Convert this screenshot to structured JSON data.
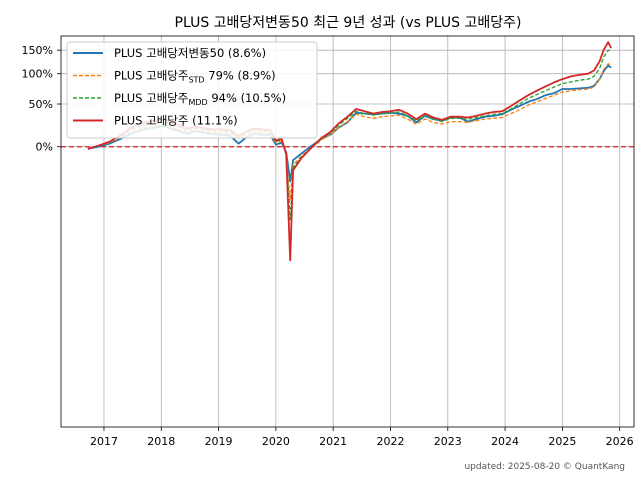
{
  "chart_data": {
    "type": "line",
    "title": "PLUS 고배당저변동50 최근 9년 성과 (vs PLUS 고배당주)",
    "xlabel": "",
    "ylabel": "",
    "ylim": [
      -0.93,
      1.86
    ],
    "y_scale": "log1p",
    "y_ticks": [
      {
        "value": 0.0,
        "label": "0%"
      },
      {
        "value": 0.5,
        "label": "50%"
      },
      {
        "value": 1.0,
        "label": "100%"
      },
      {
        "value": 1.5,
        "label": "150%"
      }
    ],
    "xlim": [
      2016.25,
      2026.25
    ],
    "x_ticks": [
      2017,
      2018,
      2019,
      2020,
      2021,
      2022,
      2023,
      2024,
      2025,
      2026
    ],
    "grid": true,
    "legend_position": "top-left",
    "reference_line": {
      "value": 0.0,
      "color": "#e41a1c",
      "style": "dashed"
    },
    "footer": "updated: 2025-08-20 © QuantKang",
    "series": [
      {
        "name": "PLUS 고배당저변동50 (8.6%)",
        "name_main": "PLUS 고배당저변동50 (8.6%)",
        "name_sub": "",
        "name_tail": "",
        "color": "#1f77b4",
        "style": "solid",
        "x": [
          2016.72,
          2016.9,
          2017.1,
          2017.3,
          2017.5,
          2017.7,
          2017.9,
          2018.05,
          2018.2,
          2018.3,
          2018.45,
          2018.6,
          2018.75,
          2018.9,
          2019.05,
          2019.2,
          2019.35,
          2019.5,
          2019.62,
          2019.75,
          2019.9,
          2020.0,
          2020.1,
          2020.18,
          2020.25,
          2020.3,
          2020.45,
          2020.6,
          2020.8,
          2020.95,
          2021.1,
          2021.25,
          2021.4,
          2021.55,
          2021.7,
          2021.85,
          2022.0,
          2022.15,
          2022.3,
          2022.45,
          2022.6,
          2022.75,
          2022.9,
          2023.05,
          2023.2,
          2023.35,
          2023.5,
          2023.65,
          2023.8,
          2023.95,
          2024.1,
          2024.25,
          2024.4,
          2024.55,
          2024.7,
          2024.85,
          2025.0,
          2025.15,
          2025.3,
          2025.45,
          2025.55,
          2025.65,
          2025.72,
          2025.8,
          2025.85
        ],
        "y": [
          -0.02,
          0.0,
          0.03,
          0.08,
          0.14,
          0.18,
          0.2,
          0.22,
          0.18,
          0.16,
          0.13,
          0.16,
          0.14,
          0.13,
          0.12,
          0.11,
          0.03,
          0.1,
          0.13,
          0.12,
          0.12,
          0.02,
          0.04,
          -0.05,
          -0.28,
          -0.12,
          -0.06,
          0.0,
          0.08,
          0.12,
          0.2,
          0.26,
          0.38,
          0.37,
          0.36,
          0.37,
          0.38,
          0.37,
          0.34,
          0.26,
          0.34,
          0.3,
          0.28,
          0.32,
          0.32,
          0.27,
          0.3,
          0.33,
          0.34,
          0.36,
          0.42,
          0.47,
          0.53,
          0.57,
          0.63,
          0.66,
          0.73,
          0.73,
          0.74,
          0.75,
          0.78,
          0.9,
          1.05,
          1.16,
          1.12
        ]
      },
      {
        "name": "PLUS 고배당주STD 79% (8.9%)",
        "name_main": "PLUS 고배당주",
        "name_sub": "STD",
        "name_tail": " 79% (8.9%)",
        "color": "#ff7f0e",
        "style": "dashed",
        "x": [
          2016.72,
          2016.9,
          2017.1,
          2017.3,
          2017.5,
          2017.7,
          2017.9,
          2018.05,
          2018.2,
          2018.3,
          2018.45,
          2018.6,
          2018.75,
          2018.9,
          2019.05,
          2019.2,
          2019.35,
          2019.5,
          2019.62,
          2019.75,
          2019.9,
          2020.0,
          2020.1,
          2020.18,
          2020.25,
          2020.3,
          2020.45,
          2020.6,
          2020.8,
          2020.95,
          2021.1,
          2021.25,
          2021.4,
          2021.55,
          2021.7,
          2021.85,
          2022.0,
          2022.15,
          2022.3,
          2022.45,
          2022.6,
          2022.75,
          2022.9,
          2023.05,
          2023.2,
          2023.35,
          2023.5,
          2023.65,
          2023.8,
          2023.95,
          2024.1,
          2024.25,
          2024.4,
          2024.55,
          2024.7,
          2024.85,
          2025.0,
          2025.15,
          2025.3,
          2025.45,
          2025.55,
          2025.65,
          2025.72,
          2025.8,
          2025.85
        ],
        "y": [
          -0.02,
          0.01,
          0.04,
          0.1,
          0.17,
          0.2,
          0.22,
          0.24,
          0.2,
          0.18,
          0.15,
          0.17,
          0.15,
          0.14,
          0.14,
          0.13,
          0.09,
          0.13,
          0.15,
          0.14,
          0.13,
          0.04,
          0.06,
          -0.06,
          -0.4,
          -0.16,
          -0.08,
          -0.02,
          0.07,
          0.12,
          0.2,
          0.27,
          0.36,
          0.33,
          0.31,
          0.33,
          0.34,
          0.35,
          0.3,
          0.24,
          0.3,
          0.26,
          0.24,
          0.27,
          0.27,
          0.26,
          0.28,
          0.3,
          0.31,
          0.32,
          0.37,
          0.42,
          0.48,
          0.53,
          0.58,
          0.63,
          0.68,
          0.7,
          0.72,
          0.73,
          0.76,
          0.9,
          1.08,
          1.2,
          1.16
        ]
      },
      {
        "name": "PLUS 고배당주MDD 94% (10.5%)",
        "name_main": "PLUS 고배당주",
        "name_sub": "MDD",
        "name_tail": " 94% (10.5%)",
        "color": "#2ca02c",
        "style": "dashed",
        "x": [
          2016.72,
          2016.9,
          2017.1,
          2017.3,
          2017.5,
          2017.7,
          2017.9,
          2018.05,
          2018.2,
          2018.3,
          2018.45,
          2018.6,
          2018.75,
          2018.9,
          2019.05,
          2019.2,
          2019.35,
          2019.5,
          2019.62,
          2019.75,
          2019.9,
          2020.0,
          2020.1,
          2020.18,
          2020.25,
          2020.3,
          2020.45,
          2020.6,
          2020.8,
          2020.95,
          2021.1,
          2021.25,
          2021.4,
          2021.55,
          2021.7,
          2021.85,
          2022.0,
          2022.15,
          2022.3,
          2022.45,
          2022.6,
          2022.75,
          2022.9,
          2023.05,
          2023.2,
          2023.35,
          2023.5,
          2023.65,
          2023.8,
          2023.95,
          2024.1,
          2024.25,
          2024.4,
          2024.55,
          2024.7,
          2024.85,
          2025.0,
          2025.15,
          2025.3,
          2025.45,
          2025.55,
          2025.65,
          2025.72,
          2025.8,
          2025.85
        ],
        "y": [
          -0.02,
          0.01,
          0.05,
          0.11,
          0.19,
          0.23,
          0.25,
          0.27,
          0.23,
          0.21,
          0.17,
          0.19,
          0.17,
          0.16,
          0.16,
          0.15,
          0.1,
          0.15,
          0.17,
          0.16,
          0.15,
          0.05,
          0.07,
          -0.06,
          -0.5,
          -0.18,
          -0.09,
          -0.02,
          0.08,
          0.14,
          0.23,
          0.31,
          0.4,
          0.37,
          0.35,
          0.37,
          0.38,
          0.39,
          0.34,
          0.28,
          0.34,
          0.3,
          0.27,
          0.31,
          0.31,
          0.3,
          0.32,
          0.34,
          0.36,
          0.37,
          0.43,
          0.5,
          0.58,
          0.64,
          0.7,
          0.76,
          0.82,
          0.85,
          0.88,
          0.9,
          0.95,
          1.1,
          1.34,
          1.5,
          1.48
        ]
      },
      {
        "name": "PLUS 고배당주 (11.1%)",
        "name_main": "PLUS 고배당주 (11.1%)",
        "name_sub": "",
        "name_tail": "",
        "color": "#d62728",
        "style": "solid",
        "x": [
          2016.72,
          2016.9,
          2017.1,
          2017.3,
          2017.5,
          2017.7,
          2017.9,
          2018.05,
          2018.2,
          2018.3,
          2018.45,
          2018.6,
          2018.75,
          2018.9,
          2019.05,
          2019.2,
          2019.35,
          2019.5,
          2019.62,
          2019.75,
          2019.9,
          2020.0,
          2020.1,
          2020.18,
          2020.25,
          2020.3,
          2020.45,
          2020.6,
          2020.8,
          2020.95,
          2021.1,
          2021.25,
          2021.4,
          2021.55,
          2021.7,
          2021.85,
          2022.0,
          2022.15,
          2022.3,
          2022.45,
          2022.6,
          2022.75,
          2022.9,
          2023.05,
          2023.2,
          2023.35,
          2023.5,
          2023.65,
          2023.8,
          2023.95,
          2024.1,
          2024.25,
          2024.4,
          2024.55,
          2024.7,
          2024.85,
          2025.0,
          2025.15,
          2025.3,
          2025.45,
          2025.55,
          2025.65,
          2025.72,
          2025.8,
          2025.85
        ],
        "y": [
          -0.02,
          0.01,
          0.05,
          0.12,
          0.21,
          0.26,
          0.28,
          0.3,
          0.26,
          0.23,
          0.19,
          0.21,
          0.19,
          0.18,
          0.18,
          0.17,
          0.11,
          0.16,
          0.19,
          0.18,
          0.17,
          0.06,
          0.08,
          -0.07,
          -0.66,
          -0.2,
          -0.1,
          -0.02,
          0.09,
          0.15,
          0.25,
          0.33,
          0.43,
          0.4,
          0.37,
          0.39,
          0.4,
          0.42,
          0.37,
          0.3,
          0.37,
          0.32,
          0.29,
          0.33,
          0.33,
          0.32,
          0.34,
          0.37,
          0.39,
          0.4,
          0.47,
          0.55,
          0.63,
          0.7,
          0.77,
          0.84,
          0.9,
          0.95,
          0.98,
          1.0,
          1.06,
          1.25,
          1.5,
          1.7,
          1.55
        ]
      }
    ]
  }
}
